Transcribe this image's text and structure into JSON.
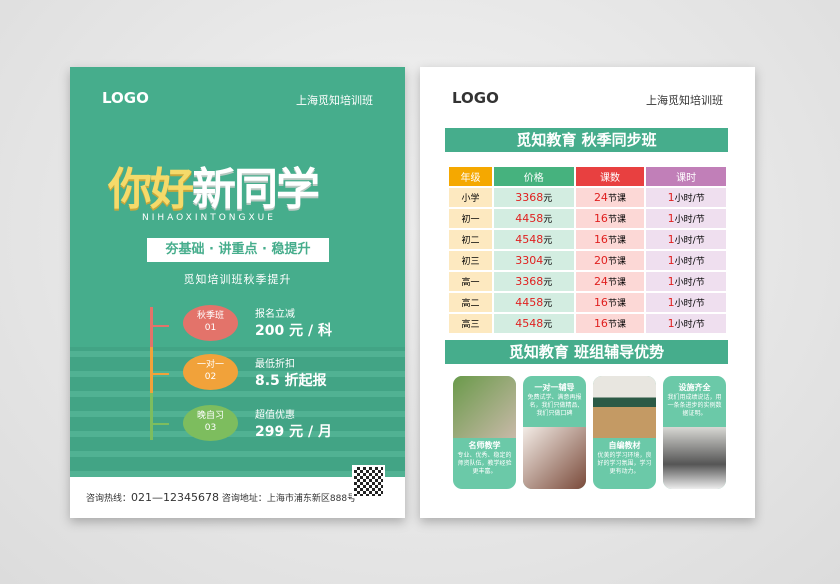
{
  "left": {
    "logo": "LOGO",
    "school": "上海觅知培训班",
    "headline_yellow": "你好",
    "headline_white": "新同学",
    "pinyin": "NIHAOXINTONGXUE",
    "ribbon": "夯基础 · 讲重点 · 稳提升",
    "subtitle": "觅知培训班秋季提升",
    "offers": [
      {
        "name": "秋季班",
        "num": "01",
        "title": "报名立减",
        "value": "200 元 / 科",
        "color": "#e3736a"
      },
      {
        "name": "一对一",
        "num": "02",
        "title": "最低折扣",
        "value": "8.5 折起报",
        "color": "#f1a23a"
      },
      {
        "name": "晚自习",
        "num": "03",
        "title": "超值优惠",
        "value": "299 元 / 月",
        "color": "#7dbd5e"
      }
    ],
    "hotline_label": "咨询热线：",
    "hotline": "021—12345678",
    "address_label": "咨询地址：",
    "address": "上海市浦东新区888号"
  },
  "right": {
    "logo": "LOGO",
    "school": "上海觅知培训班",
    "table_title": "觅知教育  秋季同步班",
    "headers": [
      "年级",
      "价格",
      "课数",
      "课时"
    ],
    "rows": [
      [
        "小学",
        "3368",
        "24",
        "1"
      ],
      [
        "初一",
        "4458",
        "16",
        "1"
      ],
      [
        "初二",
        "4548",
        "16",
        "1"
      ],
      [
        "初三",
        "3304",
        "20",
        "1"
      ],
      [
        "高一",
        "3368",
        "24",
        "1"
      ],
      [
        "高二",
        "4458",
        "16",
        "1"
      ],
      [
        "高三",
        "4548",
        "16",
        "1"
      ]
    ],
    "units": {
      "price": "元",
      "lessons": "节课",
      "hours": "小时/节"
    },
    "advantage_title": "觅知教育  班组辅导优势",
    "features": [
      {
        "title": "名师教学",
        "text": "专业、优秀、稳定的师资队伍，教学经验更丰富。"
      },
      {
        "title": "一对一辅导",
        "text": "免费试学、满意再报名，我们只做精品,我们只做口碑"
      },
      {
        "title": "自编教材",
        "text": "优美的学习环境，良好的学习氛围，学习更有动力。"
      },
      {
        "title": "设施齐全",
        "text": "我们用成绩说话，用一条条进步的实例数据证明。"
      }
    ]
  },
  "colors": {
    "brand": "#46ad8c",
    "header_grade": "#f5a800",
    "header_price": "#46b27e",
    "header_lessons": "#e84040",
    "header_hours": "#c17fb8"
  }
}
